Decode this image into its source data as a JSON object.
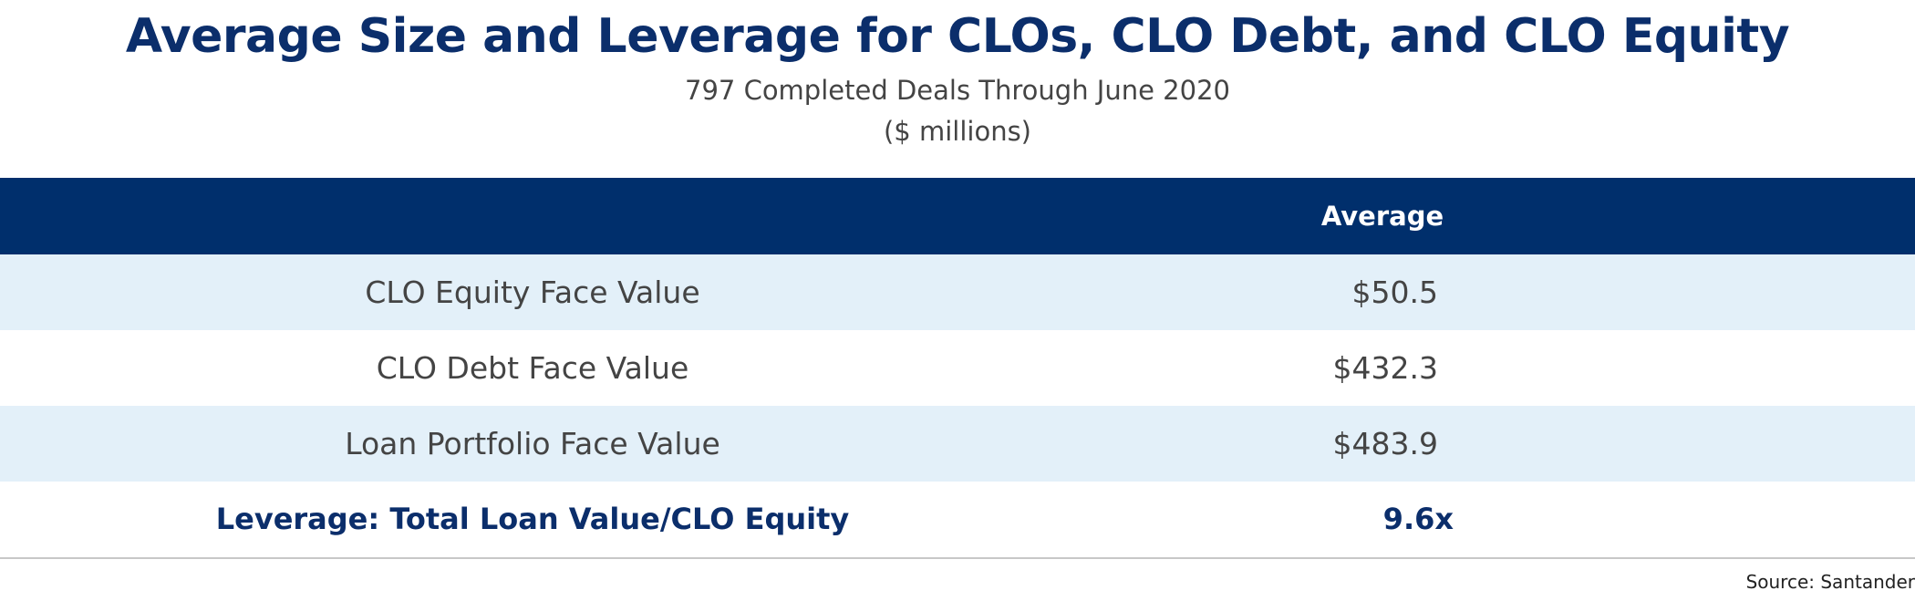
{
  "header": {
    "title": "Average Size and Leverage for CLOs, CLO Debt, and CLO Equity",
    "subtitle": "797 Completed Deals Through June 2020",
    "units": "($ millions)"
  },
  "table": {
    "column_header": "Average",
    "rows": [
      [
        "CLO Equity Face Value",
        "$50.5"
      ],
      [
        "CLO Debt Face Value",
        "$432.3"
      ],
      [
        "Loan Portfolio Face Value",
        "$483.9"
      ]
    ],
    "summary": [
      "Leverage: Total Loan Value/CLO Equity",
      "9.6x"
    ]
  },
  "footer": {
    "source": "Source: Santander"
  }
}
